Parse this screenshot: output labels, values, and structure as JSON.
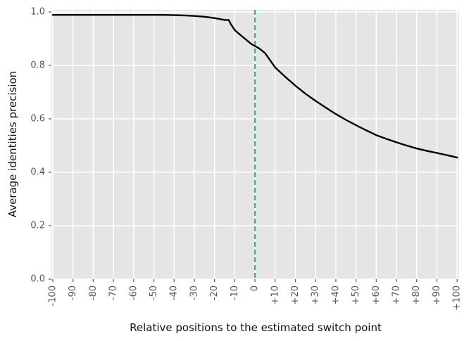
{
  "chart_data": {
    "type": "line",
    "title": "",
    "xlabel": "Relative positions to the estimated switch point",
    "ylabel": "Average identities precision",
    "series": [
      {
        "name": "average-identities-precision",
        "color": "#000000",
        "points": [
          [
            -100,
            0.989
          ],
          [
            -90,
            0.989
          ],
          [
            -80,
            0.989
          ],
          [
            -70,
            0.989
          ],
          [
            -60,
            0.989
          ],
          [
            -50,
            0.989
          ],
          [
            -45,
            0.989
          ],
          [
            -40,
            0.988
          ],
          [
            -35,
            0.987
          ],
          [
            -30,
            0.985
          ],
          [
            -25,
            0.982
          ],
          [
            -20,
            0.977
          ],
          [
            -17,
            0.973
          ],
          [
            -15,
            0.97
          ],
          [
            -13,
            0.97
          ],
          [
            -12,
            0.955
          ],
          [
            -10,
            0.932
          ],
          [
            -8,
            0.919
          ],
          [
            -5,
            0.9
          ],
          [
            -2,
            0.881
          ],
          [
            0,
            0.872
          ],
          [
            2,
            0.864
          ],
          [
            5,
            0.846
          ],
          [
            8,
            0.814
          ],
          [
            10,
            0.792
          ],
          [
            13,
            0.771
          ],
          [
            15,
            0.757
          ],
          [
            20,
            0.724
          ],
          [
            25,
            0.694
          ],
          [
            30,
            0.667
          ],
          [
            35,
            0.642
          ],
          [
            40,
            0.618
          ],
          [
            45,
            0.596
          ],
          [
            50,
            0.576
          ],
          [
            55,
            0.557
          ],
          [
            60,
            0.539
          ],
          [
            65,
            0.525
          ],
          [
            70,
            0.512
          ],
          [
            75,
            0.5
          ],
          [
            80,
            0.489
          ],
          [
            85,
            0.48
          ],
          [
            90,
            0.472
          ],
          [
            95,
            0.464
          ],
          [
            100,
            0.455
          ]
        ]
      }
    ],
    "vline": {
      "x": 0,
      "color": "#1ab2aa",
      "style": "dashed"
    },
    "xlim": [
      -100.7,
      101.0
    ],
    "ylim": [
      0,
      1.0079
    ],
    "xticks": {
      "values": [
        -100,
        -90,
        -80,
        -70,
        -60,
        -50,
        -40,
        -30,
        -20,
        -10,
        0,
        10,
        20,
        30,
        40,
        50,
        60,
        70,
        80,
        90,
        100
      ],
      "labels": [
        "-100",
        "-90",
        "-80",
        "-70",
        "-60",
        "-50",
        "-40",
        "-30",
        "-20",
        "-10",
        "0",
        "+10",
        "+20",
        "+30",
        "+40",
        "+50",
        "+60",
        "+70",
        "+80",
        "+90",
        "+100"
      ]
    },
    "yticks": {
      "values": [
        0.0,
        0.2,
        0.4,
        0.6,
        0.8,
        1.0
      ],
      "labels": [
        "0.0",
        "0.2",
        "0.4",
        "0.6",
        "0.8",
        "1.0"
      ]
    },
    "grid": true,
    "legend_position": "none",
    "colors": {
      "plot_bg": "#e5e5e5",
      "grid": "#ffffff",
      "tick": "#555555",
      "tick_label": "#555555",
      "line": "#000000",
      "fig_bg": "#ffffff"
    }
  }
}
